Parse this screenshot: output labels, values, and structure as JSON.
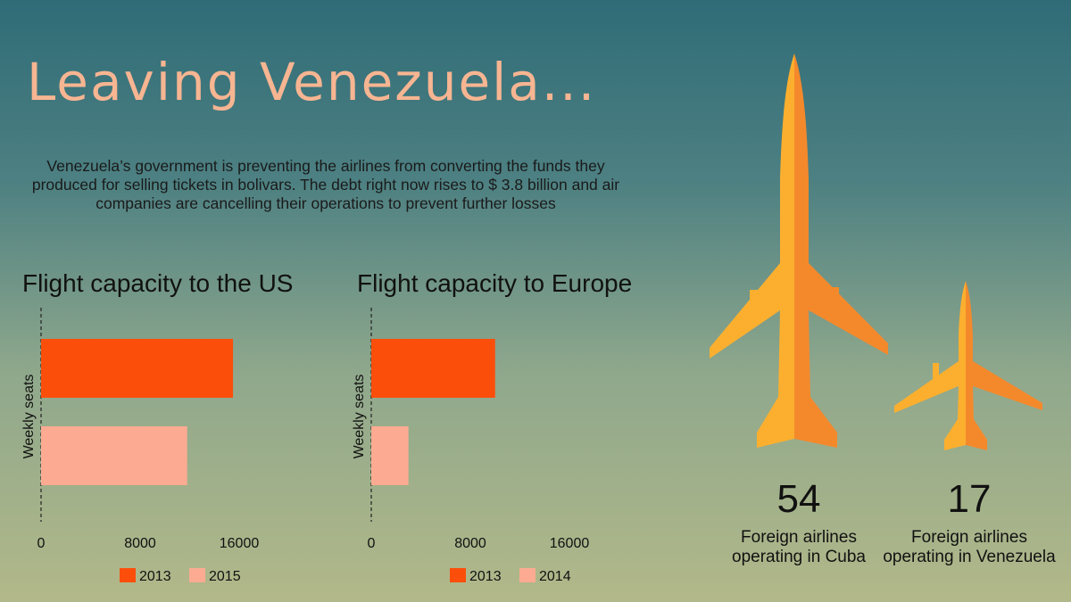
{
  "title": "Leaving Venezuela...",
  "intro": "Venezuela’s government is preventing the airlines from converting the funds they produced for selling tickets in bolivars. The debt right now rises to $ 3.8 billion and air companies are cancelling their operations to prevent further losses",
  "colors": {
    "dark": "#fb4e0b",
    "light": "#fcab92",
    "plane_light": "#fcaf2f",
    "plane_dark": "#f4892c"
  },
  "chart_data": [
    {
      "type": "bar",
      "orientation": "horizontal",
      "title": "Flight capacity to the US",
      "ylabel": "Weekly seats",
      "xlim": [
        0,
        16000
      ],
      "xticks": [
        "0",
        "8000",
        "16000"
      ],
      "series": [
        {
          "name": "2013",
          "value": 15500
        },
        {
          "name": "2015",
          "value": 11800
        }
      ],
      "legend": [
        "2013",
        "2015"
      ]
    },
    {
      "type": "bar",
      "orientation": "horizontal",
      "title": "Flight capacity to Europe",
      "ylabel": "Weekly seats",
      "xlim": [
        0,
        16000
      ],
      "xticks": [
        "0",
        "8000",
        "16000"
      ],
      "series": [
        {
          "name": "2013",
          "value": 10000
        },
        {
          "name": "2014",
          "value": 3000
        }
      ],
      "legend": [
        "2013",
        "2014"
      ]
    }
  ],
  "airlines": [
    {
      "count": "54",
      "label": "Foreign airlines operating in Cuba"
    },
    {
      "count": "17",
      "label": "Foreign airlines operating in Venezuela"
    }
  ]
}
